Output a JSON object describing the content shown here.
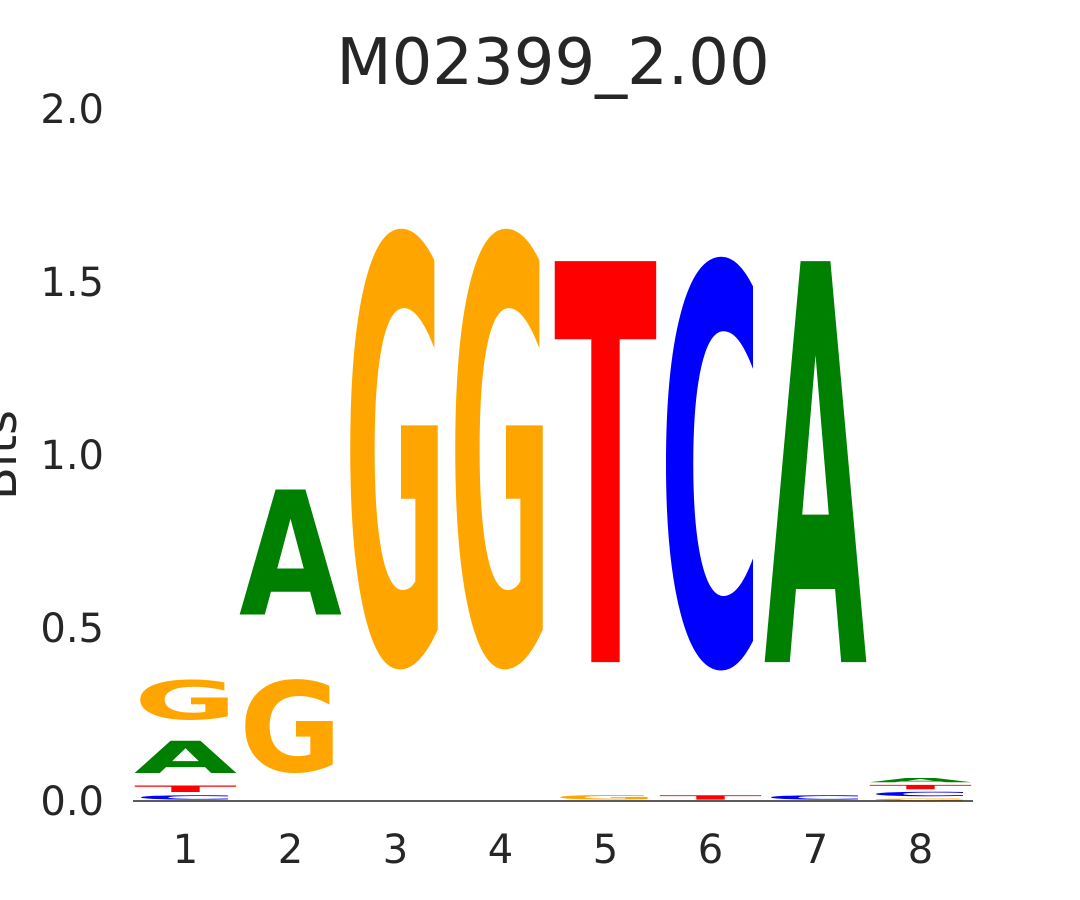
{
  "chart_data": {
    "type": "sequence-logo",
    "title": "M02399_2.00",
    "ylabel": "Bits",
    "xlabel": "",
    "ylim": [
      0,
      2.0
    ],
    "yticks": [
      "0.0",
      "0.5",
      "1.0",
      "1.5",
      "2.0"
    ],
    "positions": [
      "1",
      "2",
      "3",
      "4",
      "5",
      "6",
      "7",
      "8"
    ],
    "grid": false,
    "colors": {
      "A": "#008000",
      "C": "#0000ff",
      "G": "#ffa500",
      "T": "#ff0000"
    },
    "stacks": [
      [
        {
          "base": "C",
          "bits": 0.02
        },
        {
          "base": "T",
          "bits": 0.03
        },
        {
          "base": "A",
          "bits": 0.15
        },
        {
          "base": "G",
          "bits": 0.18
        }
      ],
      [
        {
          "base": "G",
          "bits": 0.42
        },
        {
          "base": "A",
          "bits": 0.58
        }
      ],
      [
        {
          "base": "G",
          "bits": 1.97
        }
      ],
      [
        {
          "base": "G",
          "bits": 1.97
        }
      ],
      [
        {
          "base": "G",
          "bits": 0.02
        },
        {
          "base": "T",
          "bits": 1.86
        }
      ],
      [
        {
          "base": "T",
          "bits": 0.02
        },
        {
          "base": "C",
          "bits": 1.85
        }
      ],
      [
        {
          "base": "C",
          "bits": 0.02
        },
        {
          "base": "A",
          "bits": 1.86
        }
      ],
      [
        {
          "base": "G",
          "bits": 0.01
        },
        {
          "base": "C",
          "bits": 0.02
        },
        {
          "base": "T",
          "bits": 0.02
        },
        {
          "base": "A",
          "bits": 0.02
        }
      ]
    ]
  }
}
